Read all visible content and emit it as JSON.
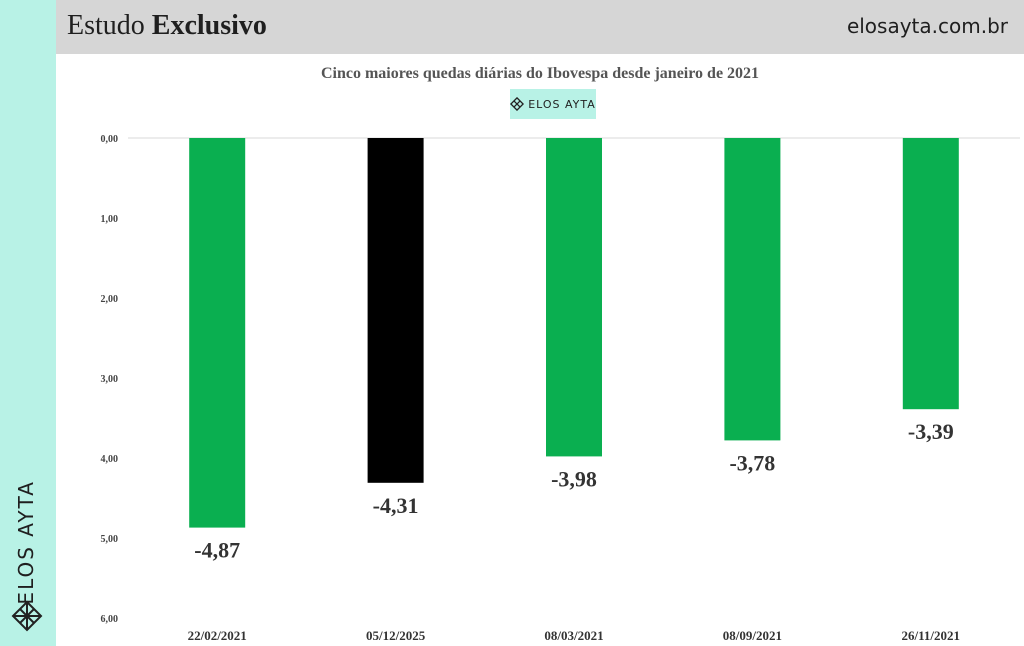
{
  "header": {
    "title_regular": "Estudo",
    "title_bold": "Exclusivo",
    "site": "elosayta.com.br"
  },
  "sidebar": {
    "brand": "ELOS AYTA",
    "logo_icon": "elos-ayta-lattice-icon"
  },
  "badge": {
    "text": "ELOS AYTA",
    "icon": "elos-ayta-lattice-icon"
  },
  "colors": {
    "green": "#0aaf50",
    "black": "#000000",
    "mint": "#b8f2e6",
    "header_bg": "#d6d6d6"
  },
  "chart_data": {
    "type": "bar",
    "title": "Cinco maiores quedas diárias do Ibovespa desde janeiro de 2021",
    "categories": [
      "22/02/2021",
      "05/12/2025",
      "08/03/2021",
      "08/09/2021",
      "26/11/2021"
    ],
    "values": [
      -4.87,
      -4.31,
      -3.98,
      -3.78,
      -3.39
    ],
    "value_labels": [
      "-4,87",
      "-4,31",
      "-3,98",
      "-3,78",
      "-3,39"
    ],
    "bar_colors": [
      "#0aaf50",
      "#000000",
      "#0aaf50",
      "#0aaf50",
      "#0aaf50"
    ],
    "yticks": [
      0,
      -1,
      -2,
      -3,
      -4,
      -5,
      -6
    ],
    "ytick_labels": [
      "0,00",
      "1,00",
      "2,00",
      "3,00",
      "4,00",
      "5,00",
      "6,00"
    ],
    "ylim": [
      -6,
      0
    ],
    "grid": false,
    "legend": "none"
  }
}
